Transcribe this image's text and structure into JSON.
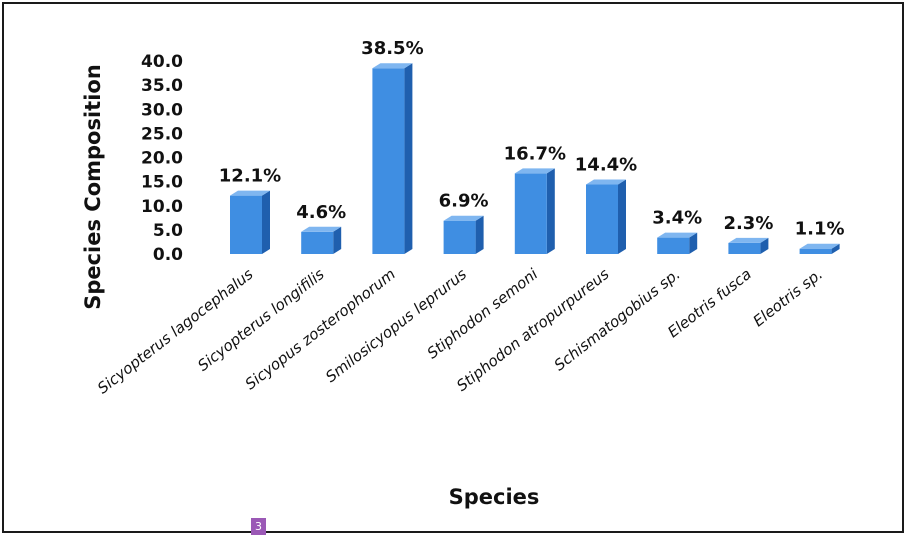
{
  "chart_data": {
    "type": "bar",
    "style": "3d",
    "bar_color": "#3f8ee2",
    "title": "",
    "xlabel": "Species",
    "ylabel": "Species Composition",
    "ylim": [
      0,
      40
    ],
    "yticks": [
      "0.0",
      "5.0",
      "10.0",
      "15.0",
      "20.0",
      "25.0",
      "30.0",
      "35.0",
      "40.0"
    ],
    "grid": false,
    "legend": "none",
    "categories": [
      "Sicyopterus lagocephalus",
      "Sicyopterus longifilis",
      "Sicyopus zosterophorum",
      "Smilosicyopus leprurus",
      "Stiphodon semoni",
      "Stiphodon atropurpureus",
      "Schismatogobius sp.",
      "Eleotris fusca",
      "Eleotris sp."
    ],
    "values": [
      12.1,
      4.6,
      38.5,
      6.9,
      16.7,
      14.4,
      3.4,
      2.3,
      1.1
    ],
    "data_labels": [
      "12.1%",
      "4.6%",
      "38.5%",
      "6.9%",
      "16.7%",
      "14.4%",
      "3.4%",
      "2.3%",
      "1.1%"
    ]
  },
  "page_badge": "3"
}
